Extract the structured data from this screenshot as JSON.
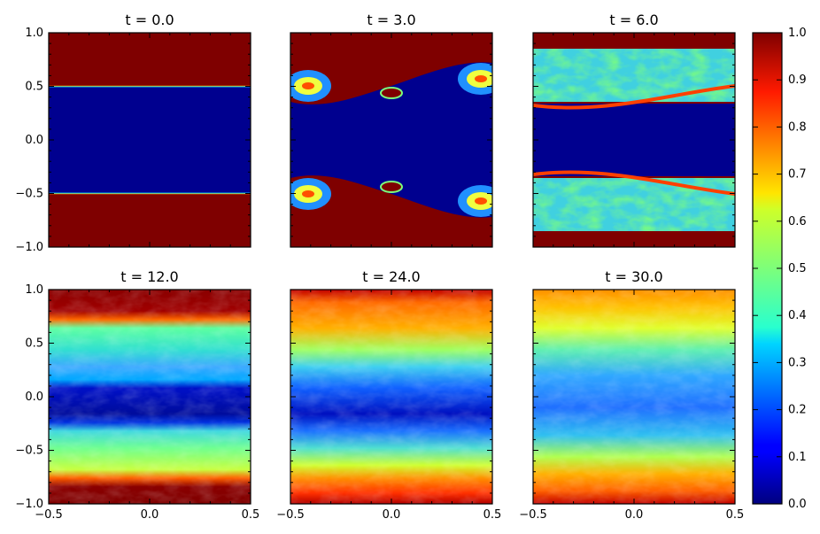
{
  "chart_data": {
    "type": "heatmap",
    "colormap": "jet",
    "xlim": [
      -0.5,
      0.5
    ],
    "ylim": [
      -1.0,
      1.0
    ],
    "x_ticks": [
      "−0.5",
      "0.0",
      "0.5"
    ],
    "y_ticks": [
      "−1.0",
      "−0.5",
      "0.0",
      "0.5",
      "1.0"
    ],
    "colorbar": {
      "range": [
        0.0,
        1.0
      ],
      "ticks": [
        "0.0",
        "0.1",
        "0.2",
        "0.3",
        "0.4",
        "0.5",
        "0.6",
        "0.7",
        "0.8",
        "0.9",
        "1.0"
      ]
    },
    "panels": [
      {
        "title": "t = 0.0"
      },
      {
        "title": "t = 3.0"
      },
      {
        "title": "t = 6.0"
      },
      {
        "title": "t = 12.0"
      },
      {
        "title": "t = 24.0"
      },
      {
        "title": "t = 30.0"
      }
    ]
  }
}
